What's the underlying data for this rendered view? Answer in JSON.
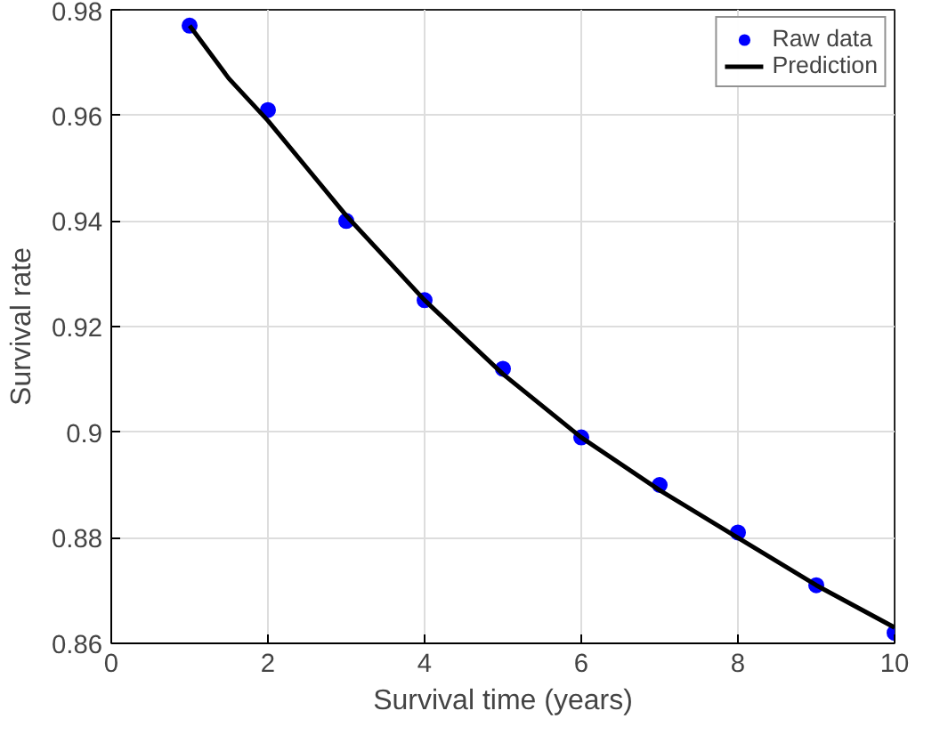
{
  "chart_data": {
    "type": "scatter",
    "xlabel": "Survival time (years)",
    "ylabel": "Survival rate",
    "xlim": [
      0,
      10
    ],
    "ylim": [
      0.86,
      0.98
    ],
    "xticks": [
      0,
      2,
      4,
      6,
      8,
      10
    ],
    "yticks": [
      0.86,
      0.88,
      0.9,
      0.92,
      0.94,
      0.96,
      0.98
    ],
    "grid": true,
    "legend": "top right",
    "series": [
      {
        "name": "Raw data",
        "marker": "circle",
        "color": "#0000ff",
        "x": [
          1,
          2,
          3,
          4,
          5,
          6,
          7,
          8,
          9,
          10
        ],
        "values": [
          0.977,
          0.961,
          0.94,
          0.925,
          0.912,
          0.899,
          0.89,
          0.881,
          0.871,
          0.862
        ]
      },
      {
        "name": "Prediction",
        "type": "line",
        "line_style": "solid",
        "color": "#000000",
        "x": [
          1,
          1.5,
          2,
          2.5,
          3,
          3.5,
          4,
          5,
          6,
          7,
          8,
          9,
          10
        ],
        "values": [
          0.977,
          0.967,
          0.959,
          0.95,
          0.941,
          0.933,
          0.925,
          0.911,
          0.899,
          0.889,
          0.88,
          0.871,
          0.863
        ]
      }
    ]
  }
}
